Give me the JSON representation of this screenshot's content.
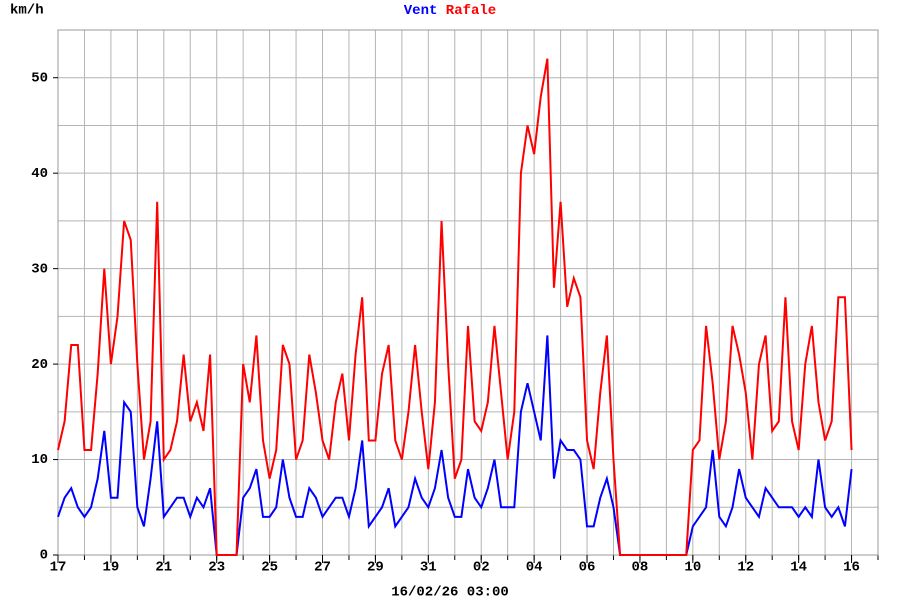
{
  "chart_data": {
    "type": "line",
    "y_label": "km/h",
    "footer": "16/02/26 03:00",
    "xlim": [
      0,
      31
    ],
    "ylim": [
      0,
      55
    ],
    "xgrid_step": 1,
    "ygrid_step": 5,
    "grid": true,
    "yticks": [
      0,
      10,
      20,
      30,
      40,
      50
    ],
    "xticks": [
      {
        "value": 0,
        "label": "17"
      },
      {
        "value": 2,
        "label": "19"
      },
      {
        "value": 4,
        "label": "21"
      },
      {
        "value": 6,
        "label": "23"
      },
      {
        "value": 8,
        "label": "25"
      },
      {
        "value": 10,
        "label": "27"
      },
      {
        "value": 12,
        "label": "29"
      },
      {
        "value": 14,
        "label": "31"
      },
      {
        "value": 16,
        "label": "02"
      },
      {
        "value": 18,
        "label": "04"
      },
      {
        "value": 20,
        "label": "06"
      },
      {
        "value": 22,
        "label": "08"
      },
      {
        "value": 24,
        "label": "10"
      },
      {
        "value": 26,
        "label": "12"
      },
      {
        "value": 28,
        "label": "14"
      },
      {
        "value": 30,
        "label": "16"
      }
    ],
    "x": [
      0,
      0.25,
      0.5,
      0.75,
      1,
      1.25,
      1.5,
      1.75,
      2,
      2.25,
      2.5,
      2.75,
      3,
      3.25,
      3.5,
      3.75,
      4,
      4.25,
      4.5,
      4.75,
      5,
      5.25,
      5.5,
      5.75,
      6,
      6.25,
      6.5,
      6.75,
      7,
      7.25,
      7.5,
      7.75,
      8,
      8.25,
      8.5,
      8.75,
      9,
      9.25,
      9.5,
      9.75,
      10,
      10.25,
      10.5,
      10.75,
      11,
      11.25,
      11.5,
      11.75,
      12,
      12.25,
      12.5,
      12.75,
      13,
      13.25,
      13.5,
      13.75,
      14,
      14.25,
      14.5,
      14.75,
      15,
      15.25,
      15.5,
      15.75,
      16,
      16.25,
      16.5,
      16.75,
      17,
      17.25,
      17.5,
      17.75,
      18,
      18.25,
      18.5,
      18.75,
      19,
      19.25,
      19.5,
      19.75,
      20,
      20.25,
      20.5,
      20.75,
      21,
      21.25,
      21.5,
      21.75,
      22,
      22.25,
      22.5,
      22.75,
      23,
      23.25,
      23.5,
      23.75,
      24,
      24.25,
      24.5,
      24.75,
      25,
      25.25,
      25.5,
      25.75,
      26,
      26.25,
      26.5,
      26.75,
      27,
      27.25,
      27.5,
      27.75,
      28,
      28.25,
      28.5,
      28.75,
      29,
      29.25,
      29.5,
      29.75,
      30
    ],
    "series": [
      {
        "name": "Vent",
        "color": "#0000ff",
        "values": [
          4,
          6,
          7,
          5,
          4,
          5,
          8,
          13,
          6,
          6,
          16,
          15,
          5,
          3,
          8,
          14,
          4,
          5,
          6,
          6,
          4,
          6,
          5,
          7,
          0,
          0,
          0,
          0,
          6,
          7,
          9,
          4,
          4,
          5,
          10,
          6,
          4,
          4,
          7,
          6,
          4,
          5,
          6,
          6,
          4,
          7,
          12,
          3,
          4,
          5,
          7,
          3,
          4,
          5,
          8,
          6,
          5,
          7,
          11,
          6,
          4,
          4,
          9,
          6,
          5,
          7,
          10,
          5,
          5,
          5,
          15,
          18,
          15,
          12,
          23,
          8,
          12,
          11,
          11,
          10,
          3,
          3,
          6,
          8,
          5,
          0,
          0,
          0,
          0,
          0,
          0,
          0,
          0,
          0,
          0,
          0,
          3,
          4,
          5,
          11,
          4,
          3,
          5,
          9,
          6,
          5,
          4,
          7,
          6,
          5,
          5,
          5,
          4,
          5,
          4,
          10,
          5,
          4,
          5,
          3,
          9
        ]
      },
      {
        "name": "Rafale",
        "color": "#ff0000",
        "values": [
          11,
          14,
          22,
          22,
          11,
          11,
          19,
          30,
          20,
          25,
          35,
          33,
          20,
          10,
          14,
          37,
          10,
          11,
          14,
          21,
          14,
          16,
          13,
          21,
          0,
          0,
          0,
          0,
          20,
          16,
          23,
          12,
          8,
          11,
          22,
          20,
          10,
          12,
          21,
          17,
          12,
          10,
          16,
          19,
          12,
          21,
          27,
          12,
          12,
          19,
          22,
          12,
          10,
          15,
          22,
          15,
          9,
          16,
          35,
          20,
          8,
          10,
          24,
          14,
          13,
          16,
          24,
          17,
          10,
          15,
          40,
          45,
          42,
          48,
          52,
          28,
          37,
          26,
          29,
          27,
          12,
          9,
          17,
          23,
          10,
          0,
          0,
          0,
          0,
          0,
          0,
          0,
          0,
          0,
          0,
          0,
          11,
          12,
          24,
          18,
          10,
          14,
          24,
          21,
          17,
          10,
          20,
          23,
          13,
          14,
          27,
          14,
          11,
          20,
          24,
          16,
          12,
          14,
          27,
          27,
          11
        ]
      }
    ]
  }
}
